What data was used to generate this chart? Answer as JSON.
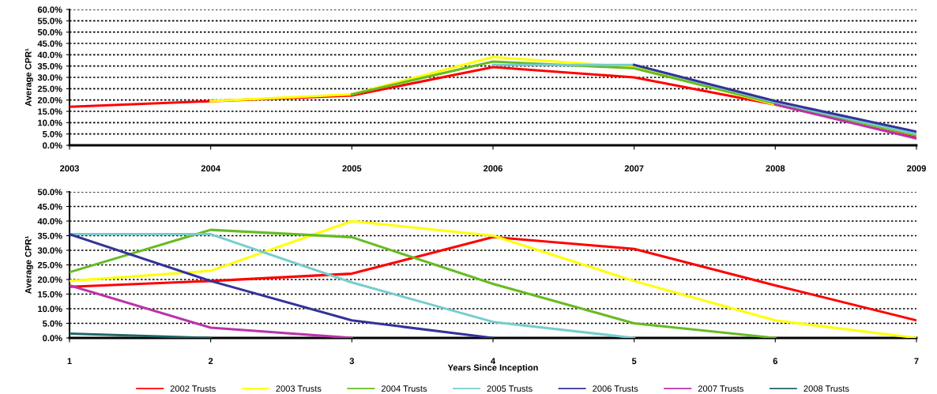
{
  "chart_data": [
    {
      "type": "line",
      "ylabel": "Average CPR¹",
      "xlim": [
        2003,
        2009
      ],
      "xticks": [
        2003,
        2004,
        2005,
        2006,
        2007,
        2008,
        2009
      ],
      "ylim": [
        0,
        60
      ],
      "yticks": [
        {
          "value": 0,
          "label": "0.0%"
        },
        {
          "value": 5,
          "label": "5.0%"
        },
        {
          "value": 10,
          "label": "10.0%"
        },
        {
          "value": 15,
          "label": "15.0%"
        },
        {
          "value": 20,
          "label": "20.0%"
        },
        {
          "value": 25,
          "label": "25.0%"
        },
        {
          "value": 30,
          "label": "30.0%"
        },
        {
          "value": 35,
          "label": "35.0%"
        },
        {
          "value": 40,
          "label": "40.0%"
        },
        {
          "value": 45,
          "label": "45.0%"
        },
        {
          "value": 50,
          "label": "50.0%"
        },
        {
          "value": 55,
          "label": "55.0%"
        },
        {
          "value": 60,
          "label": "60.0%"
        }
      ],
      "grid": "y",
      "legend": false,
      "marker": "none",
      "line_style": "solid",
      "series": [
        {
          "color": "#ff0000",
          "x": [
            2003,
            2004,
            2005,
            2006,
            2007,
            2008,
            2009
          ],
          "values": [
            17,
            19.5,
            22,
            34.5,
            30,
            18,
            3.5
          ]
        },
        {
          "color": "#ffff00",
          "x": [
            2004,
            2005,
            2006,
            2007,
            2008,
            2009
          ],
          "values": [
            19.5,
            22.5,
            39,
            34.5,
            18,
            4.5
          ]
        },
        {
          "color": "#66bb22",
          "x": [
            2005,
            2006,
            2007,
            2008,
            2009
          ],
          "values": [
            22.5,
            37,
            34,
            18.5,
            4.5
          ]
        },
        {
          "color": "#77cccc",
          "x": [
            2006,
            2007,
            2008,
            2009
          ],
          "values": [
            35.5,
            35.5,
            19,
            5
          ]
        },
        {
          "color": "#333399",
          "x": [
            2007,
            2008,
            2009
          ],
          "values": [
            35.5,
            19.5,
            6
          ]
        },
        {
          "color": "#bb33aa",
          "x": [
            2008,
            2009
          ],
          "values": [
            18,
            3
          ]
        }
      ]
    },
    {
      "type": "line",
      "ylabel": "Average CPR¹",
      "xlabel": "Years Since Inception",
      "xlim": [
        1,
        7
      ],
      "xticks": [
        1,
        2,
        3,
        4,
        5,
        6,
        7
      ],
      "ylim": [
        0,
        50
      ],
      "yticks": [
        {
          "value": 0,
          "label": "0.0%"
        },
        {
          "value": 5,
          "label": "5.0%"
        },
        {
          "value": 10,
          "label": "10.0%"
        },
        {
          "value": 15,
          "label": "15.0%"
        },
        {
          "value": 20,
          "label": "20.0%"
        },
        {
          "value": 25,
          "label": "25.0%"
        },
        {
          "value": 30,
          "label": "30.0%"
        },
        {
          "value": 35,
          "label": "35.0%"
        },
        {
          "value": 40,
          "label": "40.0%"
        },
        {
          "value": 45,
          "label": "45.0%"
        },
        {
          "value": 50,
          "label": "50.0%"
        }
      ],
      "grid": "y",
      "legend": "bottom",
      "marker": "none",
      "line_style": "solid",
      "series": [
        {
          "name": "2002 Trusts",
          "color": "#ff0000",
          "x": [
            1,
            2,
            3,
            4,
            5,
            6,
            7
          ],
          "values": [
            17.5,
            19.5,
            22,
            34.5,
            30.5,
            18,
            6
          ]
        },
        {
          "name": "2003 Trusts",
          "color": "#ffff00",
          "x": [
            1,
            2,
            3,
            4,
            5,
            6,
            7
          ],
          "values": [
            19.5,
            23,
            40,
            35,
            19.5,
            6,
            0
          ]
        },
        {
          "name": "2004 Trusts",
          "color": "#66bb22",
          "x": [
            1,
            2,
            3,
            4,
            5,
            6
          ],
          "values": [
            22.5,
            37,
            34.5,
            18.5,
            5,
            0
          ]
        },
        {
          "name": "2005 Trusts",
          "color": "#77cccc",
          "x": [
            1,
            2,
            3,
            4,
            5
          ],
          "values": [
            35.5,
            35.5,
            19,
            5.5,
            0
          ]
        },
        {
          "name": "2006 Trusts",
          "color": "#333399",
          "x": [
            1,
            2,
            3,
            4
          ],
          "values": [
            35.5,
            19.5,
            6,
            0
          ]
        },
        {
          "name": "2007 Trusts",
          "color": "#bb33aa",
          "x": [
            1,
            2,
            3
          ],
          "values": [
            18,
            3.5,
            0
          ]
        },
        {
          "name": "2008 Trusts",
          "color": "#226666",
          "x": [
            1,
            2
          ],
          "values": [
            1.5,
            0
          ]
        }
      ]
    }
  ]
}
